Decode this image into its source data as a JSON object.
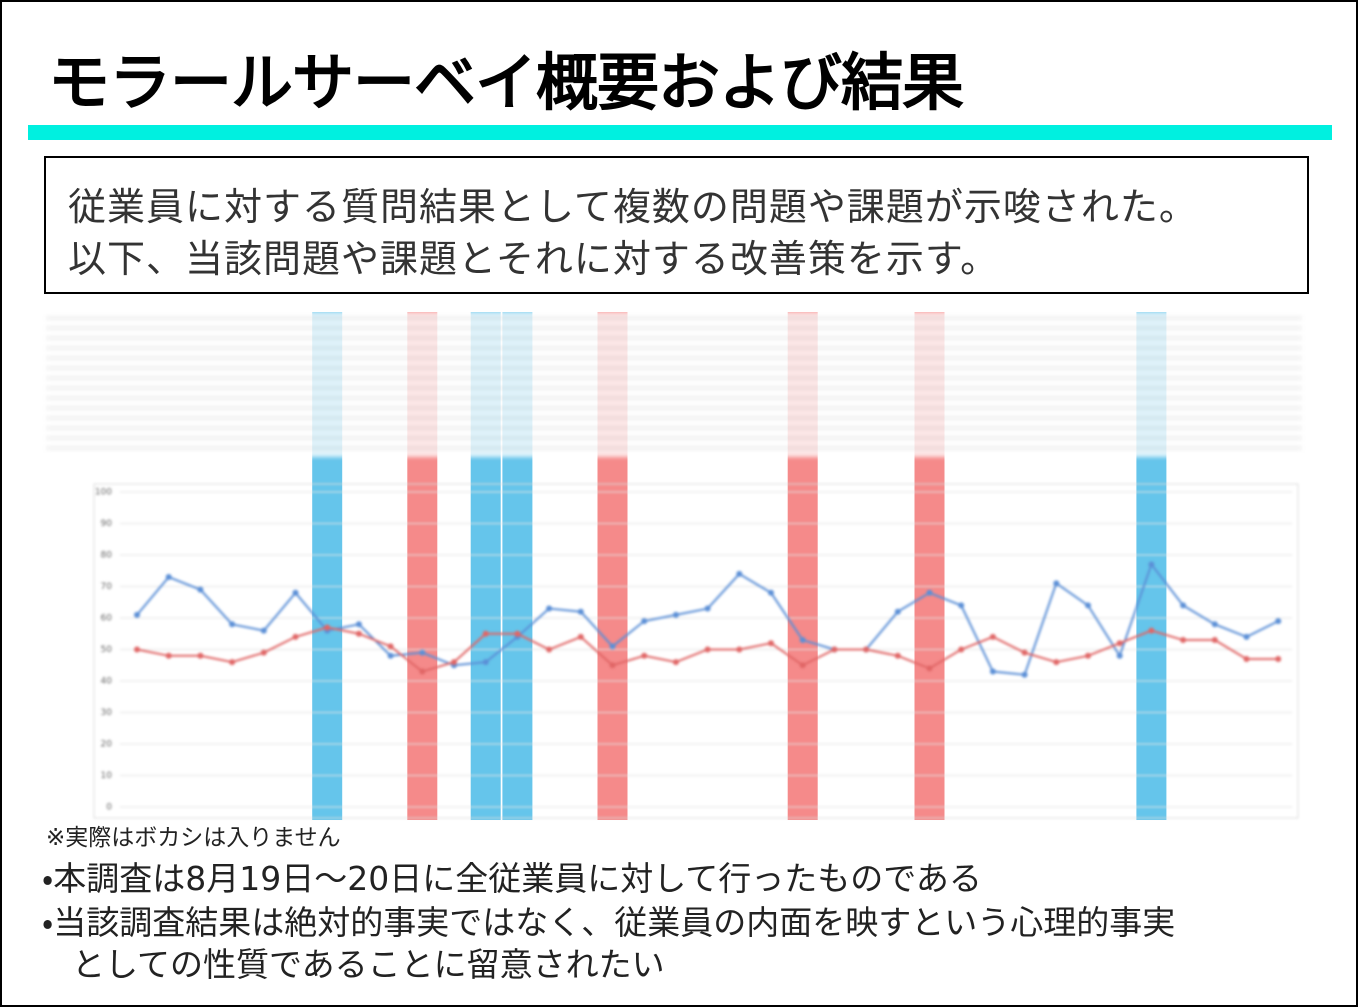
{
  "header": {
    "title": "モラールサーベイ概要および結果"
  },
  "summary": {
    "lines": [
      "従業員に対する質問結果として複数の問題や課題が示唆された。",
      "以下、当該問題や課題とそれに対する改善策を示す。"
    ]
  },
  "chart_data": {
    "type": "line",
    "categories": [
      null,
      null,
      null,
      null,
      null,
      null,
      null,
      null,
      null,
      null,
      null,
      null,
      null,
      null,
      null,
      null,
      null,
      null,
      null,
      null,
      null,
      null,
      null,
      null,
      null,
      null,
      null,
      null,
      null,
      null,
      null,
      null,
      null,
      null,
      null,
      null,
      null
    ],
    "series": [
      {
        "color": "#5b8fd6",
        "values": [
          61,
          73,
          69,
          58,
          56,
          68,
          56,
          58,
          48,
          49,
          45,
          46,
          54,
          63,
          62,
          51,
          59,
          61,
          63,
          74,
          68,
          53,
          50,
          50,
          62,
          68,
          64,
          43,
          42,
          71,
          64,
          48,
          77,
          64,
          58,
          54,
          59
        ]
      },
      {
        "color": "#e06666",
        "values": [
          50,
          48,
          48,
          46,
          49,
          54,
          57,
          55,
          51,
          43,
          46,
          55,
          55,
          50,
          54,
          45,
          48,
          46,
          50,
          50,
          52,
          45,
          50,
          50,
          48,
          44,
          50,
          54,
          49,
          46,
          48,
          52,
          56,
          53,
          53,
          47,
          47
        ]
      }
    ],
    "ylim": [
      0,
      100
    ],
    "yticks": [
      0,
      10,
      20,
      30,
      40,
      50,
      60,
      70,
      80,
      90,
      100
    ],
    "grid": true,
    "highlights": [
      {
        "index": 6,
        "color": "#3fb6e6"
      },
      {
        "index": 9,
        "color": "#f26d6d"
      },
      {
        "index": 11,
        "color": "#3fb6e6"
      },
      {
        "index": 12,
        "color": "#3fb6e6"
      },
      {
        "index": 15,
        "color": "#f26d6d"
      },
      {
        "index": 21,
        "color": "#f26d6d"
      },
      {
        "index": 25,
        "color": "#f26d6d"
      },
      {
        "index": 32,
        "color": "#3fb6e6"
      }
    ]
  },
  "note": "※実際はボカシは入りません",
  "bullets": [
    [
      "・本調査は8月19日～20日に全従業員に対して行ったものである"
    ],
    [
      "・当該調査結果は絶対的事実ではなく、従業員の内面を映すという心理的事実",
      "としての性質であることに留意されたい"
    ]
  ]
}
